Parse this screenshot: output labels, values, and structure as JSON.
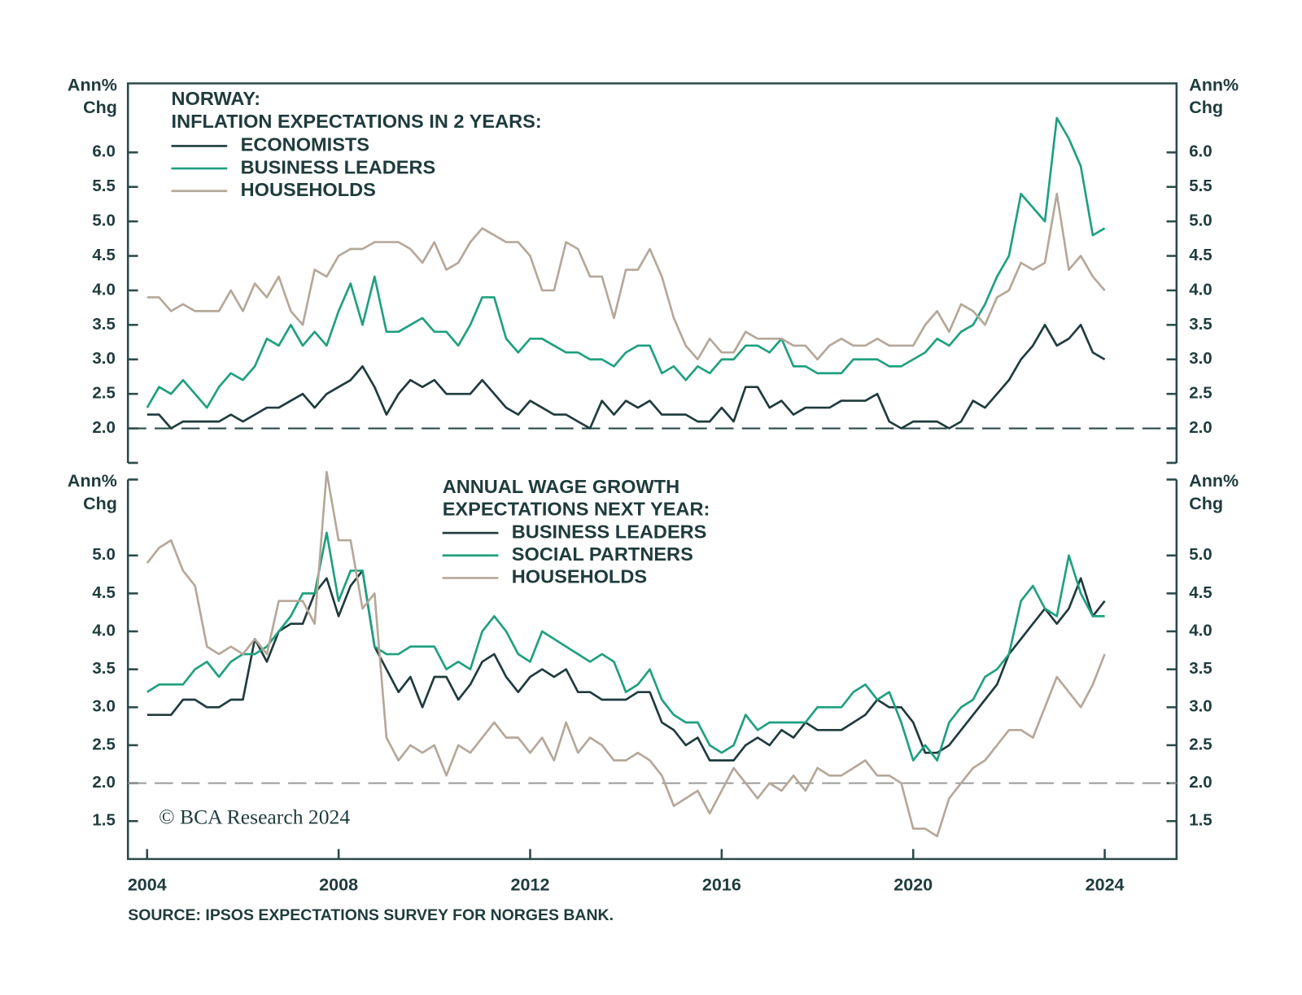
{
  "chart_data": [
    {
      "type": "line",
      "title": [
        "NORWAY:",
        "INFLATION EXPECTATIONS IN 2 YEARS:"
      ],
      "ylabel": [
        "Ann%",
        "Chg"
      ],
      "x": [
        2004,
        2004.25,
        2004.5,
        2004.75,
        2005,
        2005.25,
        2005.5,
        2005.75,
        2006,
        2006.25,
        2006.5,
        2006.75,
        2007,
        2007.25,
        2007.5,
        2007.75,
        2008,
        2008.25,
        2008.5,
        2008.75,
        2009,
        2009.25,
        2009.5,
        2009.75,
        2010,
        2010.25,
        2010.5,
        2010.75,
        2011,
        2011.25,
        2011.5,
        2011.75,
        2012,
        2012.25,
        2012.5,
        2012.75,
        2013,
        2013.25,
        2013.5,
        2013.75,
        2014,
        2014.25,
        2014.5,
        2014.75,
        2015,
        2015.25,
        2015.5,
        2015.75,
        2016,
        2016.25,
        2016.5,
        2016.75,
        2017,
        2017.25,
        2017.5,
        2017.75,
        2018,
        2018.25,
        2018.5,
        2018.75,
        2019,
        2019.25,
        2019.5,
        2019.75,
        2020,
        2020.25,
        2020.5,
        2020.75,
        2021,
        2021.25,
        2021.5,
        2021.75,
        2022,
        2022.25,
        2022.5,
        2022.75,
        2023,
        2023.25,
        2023.5,
        2023.75,
        2024
      ],
      "xlim": [
        2003.6,
        2025.5
      ],
      "ylim": [
        1.5,
        7.0
      ],
      "yticks": [
        {
          "value": 2,
          "label": "2.0"
        },
        {
          "value": 2.5,
          "label": "2.5"
        },
        {
          "value": 3,
          "label": "3.0"
        },
        {
          "value": 3.5,
          "label": "3.5"
        },
        {
          "value": 4,
          "label": "4.0"
        },
        {
          "value": 4.5,
          "label": "4.5"
        },
        {
          "value": 5,
          "label": "5.0"
        },
        {
          "value": 5.5,
          "label": "5.5"
        },
        {
          "value": 6,
          "label": "6.0"
        }
      ],
      "hline": 2,
      "series": [
        {
          "name": "ECONOMISTS",
          "color": "#1f3b3d",
          "values": [
            2.2,
            2.2,
            2.0,
            2.1,
            2.1,
            2.1,
            2.1,
            2.2,
            2.1,
            2.2,
            2.3,
            2.3,
            2.4,
            2.5,
            2.3,
            2.5,
            2.6,
            2.7,
            2.9,
            2.6,
            2.2,
            2.5,
            2.7,
            2.6,
            2.7,
            2.5,
            2.5,
            2.5,
            2.7,
            2.5,
            2.3,
            2.2,
            2.4,
            2.3,
            2.2,
            2.2,
            2.1,
            2.0,
            2.4,
            2.2,
            2.4,
            2.3,
            2.4,
            2.2,
            2.2,
            2.2,
            2.1,
            2.1,
            2.3,
            2.1,
            2.6,
            2.6,
            2.3,
            2.4,
            2.2,
            2.3,
            2.3,
            2.3,
            2.4,
            2.4,
            2.4,
            2.5,
            2.1,
            2.0,
            2.1,
            2.1,
            2.1,
            2.0,
            2.1,
            2.4,
            2.3,
            2.5,
            2.7,
            3.0,
            3.2,
            3.5,
            3.2,
            3.3,
            3.5,
            3.1,
            3.0
          ]
        },
        {
          "name": "BUSINESS LEADERS",
          "color": "#1fa07f",
          "values": [
            2.3,
            2.6,
            2.5,
            2.7,
            2.5,
            2.3,
            2.6,
            2.8,
            2.7,
            2.9,
            3.3,
            3.2,
            3.5,
            3.2,
            3.4,
            3.2,
            3.7,
            4.1,
            3.5,
            4.2,
            3.4,
            3.4,
            3.5,
            3.6,
            3.4,
            3.4,
            3.2,
            3.5,
            3.9,
            3.9,
            3.3,
            3.1,
            3.3,
            3.3,
            3.2,
            3.1,
            3.1,
            3.0,
            3.0,
            2.9,
            3.1,
            3.2,
            3.2,
            2.8,
            2.9,
            2.7,
            2.9,
            2.8,
            3.0,
            3.0,
            3.2,
            3.2,
            3.1,
            3.3,
            2.9,
            2.9,
            2.8,
            2.8,
            2.8,
            3.0,
            3.0,
            3.0,
            2.9,
            2.9,
            3.0,
            3.1,
            3.3,
            3.2,
            3.4,
            3.5,
            3.8,
            4.2,
            4.5,
            5.4,
            5.2,
            5.0,
            6.5,
            6.2,
            5.8,
            4.8,
            4.9
          ]
        },
        {
          "name": "HOUSEHOLDS",
          "color": "#b5a899",
          "values": [
            3.9,
            3.9,
            3.7,
            3.8,
            3.7,
            3.7,
            3.7,
            4.0,
            3.7,
            4.1,
            3.9,
            4.2,
            3.7,
            3.5,
            4.3,
            4.2,
            4.5,
            4.6,
            4.6,
            4.7,
            4.7,
            4.7,
            4.6,
            4.4,
            4.7,
            4.3,
            4.4,
            4.7,
            4.9,
            4.8,
            4.7,
            4.7,
            4.5,
            4.0,
            4.0,
            4.7,
            4.6,
            4.2,
            4.2,
            3.6,
            4.3,
            4.3,
            4.6,
            4.2,
            3.6,
            3.2,
            3.0,
            3.3,
            3.1,
            3.1,
            3.4,
            3.3,
            3.3,
            3.3,
            3.2,
            3.2,
            3.0,
            3.2,
            3.3,
            3.2,
            3.2,
            3.3,
            3.2,
            3.2,
            3.2,
            3.5,
            3.7,
            3.4,
            3.8,
            3.7,
            3.5,
            3.9,
            4.0,
            4.4,
            4.3,
            4.4,
            5.4,
            4.3,
            4.5,
            4.2,
            4.0
          ]
        }
      ]
    },
    {
      "type": "line",
      "title": [
        "ANNUAL WAGE GROWTH",
        "EXPECTATIONS NEXT YEAR:"
      ],
      "ylabel": [
        "Ann%",
        "Chg"
      ],
      "x": [
        2004,
        2004.25,
        2004.5,
        2004.75,
        2005,
        2005.25,
        2005.5,
        2005.75,
        2006,
        2006.25,
        2006.5,
        2006.75,
        2007,
        2007.25,
        2007.5,
        2007.75,
        2008,
        2008.25,
        2008.5,
        2008.75,
        2009,
        2009.25,
        2009.5,
        2009.75,
        2010,
        2010.25,
        2010.5,
        2010.75,
        2011,
        2011.25,
        2011.5,
        2011.75,
        2012,
        2012.25,
        2012.5,
        2012.75,
        2013,
        2013.25,
        2013.5,
        2013.75,
        2014,
        2014.25,
        2014.5,
        2014.75,
        2015,
        2015.25,
        2015.5,
        2015.75,
        2016,
        2016.25,
        2016.5,
        2016.75,
        2017,
        2017.25,
        2017.5,
        2017.75,
        2018,
        2018.25,
        2018.5,
        2018.75,
        2019,
        2019.25,
        2019.5,
        2019.75,
        2020,
        2020.25,
        2020.5,
        2020.75,
        2021,
        2021.25,
        2021.5,
        2021.75,
        2022,
        2022.25,
        2022.5,
        2022.75,
        2023,
        2023.25,
        2023.5,
        2023.75,
        2024
      ],
      "xlim": [
        2003.6,
        2025.5
      ],
      "xticks": [
        2004,
        2008,
        2012,
        2016,
        2020,
        2024
      ],
      "ylim": [
        1.0,
        6.0
      ],
      "yticks": [
        {
          "value": 1.5,
          "label": "1.5"
        },
        {
          "value": 2,
          "label": "2.0"
        },
        {
          "value": 2.5,
          "label": "2.5"
        },
        {
          "value": 3,
          "label": "3.0"
        },
        {
          "value": 3.5,
          "label": "3.5"
        },
        {
          "value": 4,
          "label": "4.0"
        },
        {
          "value": 4.5,
          "label": "4.5"
        },
        {
          "value": 5,
          "label": "5.0"
        }
      ],
      "hline": 2,
      "series": [
        {
          "name": "BUSINESS LEADERS",
          "color": "#1f3b3d",
          "values": [
            2.9,
            2.9,
            2.9,
            3.1,
            3.1,
            3.0,
            3.0,
            3.1,
            3.1,
            3.9,
            3.6,
            4.0,
            4.1,
            4.1,
            4.5,
            4.7,
            4.2,
            4.6,
            4.8,
            3.8,
            3.5,
            3.2,
            3.4,
            3.0,
            3.4,
            3.4,
            3.1,
            3.3,
            3.6,
            3.7,
            3.4,
            3.2,
            3.4,
            3.5,
            3.4,
            3.5,
            3.2,
            3.2,
            3.1,
            3.1,
            3.1,
            3.2,
            3.2,
            2.8,
            2.7,
            2.5,
            2.6,
            2.3,
            2.3,
            2.3,
            2.5,
            2.6,
            2.5,
            2.7,
            2.6,
            2.8,
            2.7,
            2.7,
            2.7,
            2.8,
            2.9,
            3.1,
            3.0,
            3.0,
            2.8,
            2.4,
            2.4,
            2.5,
            2.7,
            2.9,
            3.1,
            3.3,
            3.7,
            3.9,
            4.1,
            4.3,
            4.1,
            4.3,
            4.7,
            4.2,
            4.4
          ]
        },
        {
          "name": "SOCIAL PARTNERS",
          "color": "#1fa07f",
          "values": [
            3.2,
            3.3,
            3.3,
            3.3,
            3.5,
            3.6,
            3.4,
            3.6,
            3.7,
            3.7,
            3.8,
            4.0,
            4.2,
            4.5,
            4.5,
            5.3,
            4.4,
            4.8,
            4.8,
            3.8,
            3.7,
            3.7,
            3.8,
            3.8,
            3.8,
            3.5,
            3.6,
            3.5,
            4.0,
            4.2,
            4.0,
            3.7,
            3.6,
            4.0,
            3.9,
            3.8,
            3.7,
            3.6,
            3.7,
            3.6,
            3.2,
            3.3,
            3.5,
            3.1,
            2.9,
            2.8,
            2.8,
            2.5,
            2.4,
            2.5,
            2.9,
            2.7,
            2.8,
            2.8,
            2.8,
            2.8,
            3.0,
            3.0,
            3.0,
            3.2,
            3.3,
            3.1,
            3.2,
            2.8,
            2.3,
            2.5,
            2.3,
            2.8,
            3.0,
            3.1,
            3.4,
            3.5,
            3.7,
            4.4,
            4.6,
            4.3,
            4.2,
            5.0,
            4.5,
            4.2,
            4.2
          ]
        },
        {
          "name": "HOUSEHOLDS",
          "color": "#b5a899",
          "values": [
            4.9,
            5.1,
            5.2,
            4.8,
            4.6,
            3.8,
            3.7,
            3.8,
            3.7,
            3.9,
            3.7,
            4.4,
            4.4,
            4.4,
            4.1,
            6.1,
            5.2,
            5.2,
            4.3,
            4.5,
            2.6,
            2.3,
            2.5,
            2.4,
            2.5,
            2.1,
            2.5,
            2.4,
            2.6,
            2.8,
            2.6,
            2.6,
            2.4,
            2.6,
            2.3,
            2.8,
            2.4,
            2.6,
            2.5,
            2.3,
            2.3,
            2.4,
            2.3,
            2.1,
            1.7,
            1.8,
            1.9,
            1.6,
            1.9,
            2.2,
            2.0,
            1.8,
            2.0,
            1.9,
            2.1,
            1.9,
            2.2,
            2.1,
            2.1,
            2.2,
            2.3,
            2.1,
            2.1,
            2.0,
            1.4,
            1.4,
            1.3,
            1.8,
            2.0,
            2.2,
            2.3,
            2.5,
            2.7,
            2.7,
            2.6,
            3.0,
            3.4,
            3.2,
            3.0,
            3.3,
            3.7
          ]
        }
      ]
    }
  ],
  "watermark": "© BCA Research 2024",
  "source": "SOURCE: IPSOS EXPECTATIONS SURVEY FOR NORGES BANK."
}
